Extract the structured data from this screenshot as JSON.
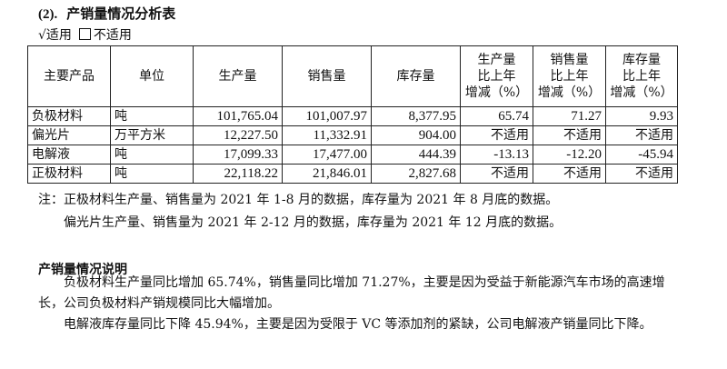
{
  "heading": {
    "number": "(2).",
    "title": "产销量情况分析表"
  },
  "applicability": {
    "applicable": "√适用",
    "not_applicable": "不适用"
  },
  "table": {
    "headers": [
      "主要产品",
      "单位",
      "生产量",
      "销售量",
      "库存量",
      "生产量\n比上年\n增减（%）",
      "销售量\n比上年\n增减（%）",
      "库存量\n比上年\n增减（%）"
    ],
    "rows": [
      [
        "负极材料",
        "吨",
        "101,765.04",
        "101,007.97",
        "8,377.95",
        "65.74",
        "71.27",
        "9.93"
      ],
      [
        "偏光片",
        "万平方米",
        "12,227.50",
        "11,332.91",
        "904.00",
        "不适用",
        "不适用",
        "不适用"
      ],
      [
        "电解液",
        "吨",
        "17,099.33",
        "17,477.00",
        "444.39",
        "-13.13",
        "-12.20",
        "-45.94"
      ],
      [
        "正极材料",
        "吨",
        "22,118.22",
        "21,846.01",
        "2,827.68",
        "不适用",
        "不适用",
        "不适用"
      ]
    ]
  },
  "notes": {
    "line1": "注：正极材料生产量、销售量为 2021 年 1-8 月的数据，库存量为 2021 年 8 月底的数据。",
    "line2": "偏光片生产量、销售量为 2021 年 2-12 月的数据，库存量为 2021 年 12 月底的数据。"
  },
  "explanation": {
    "title": "产销量情况说明",
    "para1": "负极材料生产量同比增加 65.74%，销售量同比增加 71.27%，主要是因为受益于新能源汽车市场的高速增长，公司负极材料产销规模同比大幅增加。",
    "para2": "电解液库存量同比下降 45.94%，主要是因为受限于 VC 等添加剂的紧缺，公司电解液产销量同比下降。"
  }
}
